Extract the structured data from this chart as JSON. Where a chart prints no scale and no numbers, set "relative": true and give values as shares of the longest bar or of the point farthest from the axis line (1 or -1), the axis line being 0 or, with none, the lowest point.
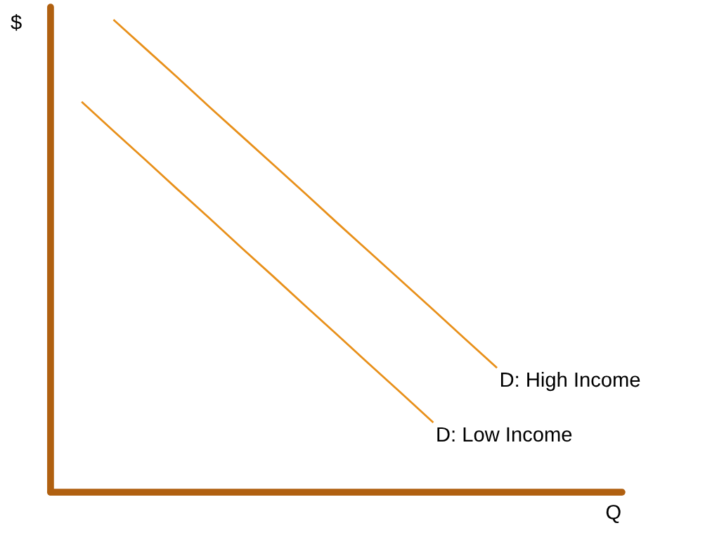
{
  "chart_data": {
    "type": "line",
    "relative": true,
    "xlabel": "Q",
    "ylabel": "$",
    "legend": false,
    "marker": "none",
    "line_style": "solid",
    "categories": [
      null,
      null,
      null,
      null,
      null,
      null,
      null,
      null,
      null,
      null,
      null,
      null,
      null,
      null,
      null,
      null,
      null,
      null
    ],
    "series": [
      {
        "name": "D: High Income",
        "color": "#e8901a",
        "values": [
          null,
          null,
          1.0,
          0.939,
          0.878,
          0.816,
          0.755,
          0.694,
          0.633,
          0.571,
          0.51,
          0.449,
          0.388,
          0.326,
          0.265,
          null,
          null,
          null
        ]
      },
      {
        "name": "D: Low Income",
        "color": "#e8901a",
        "values": [
          null,
          0.826,
          0.764,
          0.703,
          0.641,
          0.58,
          0.518,
          0.457,
          0.395,
          0.334,
          0.272,
          0.211,
          0.149,
          null,
          null,
          null,
          null,
          null
        ]
      }
    ]
  }
}
